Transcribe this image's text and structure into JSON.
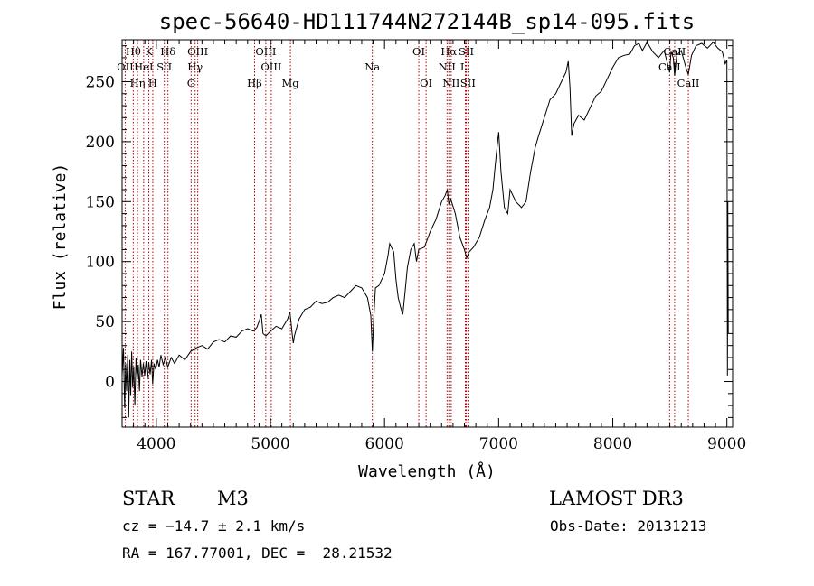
{
  "chart_data": {
    "type": "line",
    "title": "spec-56640-HD111744N272144B_sp14-095.fits",
    "xlabel": "Wavelength (Å)",
    "ylabel": "Flux (relative)",
    "xlim": [
      3700,
      9050
    ],
    "ylim": [
      -38,
      285
    ],
    "xticks": [
      4000,
      5000,
      6000,
      7000,
      8000,
      9000
    ],
    "yticks": [
      0,
      50,
      100,
      150,
      200,
      250
    ],
    "spectrum": [
      [
        3700,
        5
      ],
      [
        3712,
        28
      ],
      [
        3722,
        -22
      ],
      [
        3731,
        15
      ],
      [
        3740,
        -8
      ],
      [
        3749,
        22
      ],
      [
        3758,
        -30
      ],
      [
        3767,
        18
      ],
      [
        3775,
        -12
      ],
      [
        3784,
        25
      ],
      [
        3793,
        -5
      ],
      [
        3802,
        12
      ],
      [
        3812,
        -20
      ],
      [
        3822,
        20
      ],
      [
        3832,
        2
      ],
      [
        3842,
        14
      ],
      [
        3852,
        -8
      ],
      [
        3862,
        18
      ],
      [
        3874,
        4
      ],
      [
        3886,
        15
      ],
      [
        3898,
        5
      ],
      [
        3910,
        17
      ],
      [
        3922,
        2
      ],
      [
        3934,
        16
      ],
      [
        3946,
        6
      ],
      [
        3958,
        18
      ],
      [
        3968,
        -2
      ],
      [
        3980,
        15
      ],
      [
        3995,
        10
      ],
      [
        4010,
        18
      ],
      [
        4025,
        12
      ],
      [
        4040,
        22
      ],
      [
        4060,
        14
      ],
      [
        4080,
        20
      ],
      [
        4100,
        12
      ],
      [
        4130,
        20
      ],
      [
        4160,
        15
      ],
      [
        4200,
        22
      ],
      [
        4250,
        18
      ],
      [
        4300,
        25
      ],
      [
        4350,
        28
      ],
      [
        4400,
        30
      ],
      [
        4450,
        27
      ],
      [
        4500,
        33
      ],
      [
        4550,
        35
      ],
      [
        4600,
        33
      ],
      [
        4650,
        38
      ],
      [
        4700,
        37
      ],
      [
        4750,
        42
      ],
      [
        4800,
        44
      ],
      [
        4850,
        42
      ],
      [
        4880,
        45
      ],
      [
        4900,
        50
      ],
      [
        4920,
        56
      ],
      [
        4935,
        40
      ],
      [
        4960,
        38
      ],
      [
        5000,
        42
      ],
      [
        5050,
        46
      ],
      [
        5100,
        44
      ],
      [
        5150,
        52
      ],
      [
        5170,
        58
      ],
      [
        5180,
        50
      ],
      [
        5190,
        40
      ],
      [
        5200,
        32
      ],
      [
        5210,
        38
      ],
      [
        5250,
        52
      ],
      [
        5300,
        60
      ],
      [
        5350,
        62
      ],
      [
        5400,
        67
      ],
      [
        5450,
        65
      ],
      [
        5500,
        66
      ],
      [
        5550,
        70
      ],
      [
        5600,
        72
      ],
      [
        5650,
        70
      ],
      [
        5700,
        75
      ],
      [
        5750,
        80
      ],
      [
        5800,
        78
      ],
      [
        5850,
        70
      ],
      [
        5880,
        55
      ],
      [
        5893,
        25
      ],
      [
        5905,
        52
      ],
      [
        5920,
        78
      ],
      [
        5950,
        80
      ],
      [
        6000,
        90
      ],
      [
        6030,
        105
      ],
      [
        6045,
        115
      ],
      [
        6060,
        112
      ],
      [
        6080,
        108
      ],
      [
        6100,
        85
      ],
      [
        6120,
        70
      ],
      [
        6140,
        62
      ],
      [
        6160,
        56
      ],
      [
        6180,
        75
      ],
      [
        6200,
        95
      ],
      [
        6230,
        110
      ],
      [
        6260,
        115
      ],
      [
        6280,
        100
      ],
      [
        6300,
        110
      ],
      [
        6350,
        112
      ],
      [
        6400,
        125
      ],
      [
        6450,
        135
      ],
      [
        6500,
        150
      ],
      [
        6530,
        155
      ],
      [
        6550,
        160
      ],
      [
        6563,
        148
      ],
      [
        6580,
        152
      ],
      [
        6620,
        140
      ],
      [
        6660,
        120
      ],
      [
        6700,
        110
      ],
      [
        6720,
        103
      ],
      [
        6740,
        108
      ],
      [
        6780,
        112
      ],
      [
        6830,
        120
      ],
      [
        6880,
        135
      ],
      [
        6920,
        145
      ],
      [
        6950,
        160
      ],
      [
        6980,
        190
      ],
      [
        7000,
        208
      ],
      [
        7020,
        175
      ],
      [
        7050,
        145
      ],
      [
        7080,
        140
      ],
      [
        7100,
        160
      ],
      [
        7150,
        150
      ],
      [
        7200,
        145
      ],
      [
        7240,
        150
      ],
      [
        7280,
        175
      ],
      [
        7320,
        195
      ],
      [
        7350,
        205
      ],
      [
        7400,
        220
      ],
      [
        7450,
        235
      ],
      [
        7500,
        240
      ],
      [
        7550,
        250
      ],
      [
        7590,
        258
      ],
      [
        7610,
        267
      ],
      [
        7625,
        245
      ],
      [
        7640,
        205
      ],
      [
        7660,
        215
      ],
      [
        7700,
        222
      ],
      [
        7750,
        218
      ],
      [
        7800,
        228
      ],
      [
        7850,
        238
      ],
      [
        7900,
        242
      ],
      [
        7950,
        252
      ],
      [
        8000,
        262
      ],
      [
        8050,
        270
      ],
      [
        8100,
        272
      ],
      [
        8150,
        273
      ],
      [
        8190,
        280
      ],
      [
        8230,
        282
      ],
      [
        8260,
        276
      ],
      [
        8300,
        283
      ],
      [
        8350,
        275
      ],
      [
        8400,
        270
      ],
      [
        8450,
        276
      ],
      [
        8498,
        258
      ],
      [
        8510,
        275
      ],
      [
        8530,
        270
      ],
      [
        8542,
        255
      ],
      [
        8560,
        272
      ],
      [
        8600,
        276
      ],
      [
        8640,
        262
      ],
      [
        8662,
        256
      ],
      [
        8690,
        272
      ],
      [
        8730,
        280
      ],
      [
        8780,
        282
      ],
      [
        8830,
        278
      ],
      [
        8880,
        283
      ],
      [
        8920,
        278
      ],
      [
        8960,
        275
      ],
      [
        8985,
        265
      ],
      [
        9000,
        268
      ],
      [
        9005,
        5
      ],
      [
        9008,
        150
      ],
      [
        9012,
        40
      ]
    ],
    "lines": [
      {
        "label": "Hθ",
        "x": 3798,
        "row": 0
      },
      {
        "label": "K",
        "x": 3934,
        "row": 0
      },
      {
        "label": "Hδ",
        "x": 4102,
        "row": 0
      },
      {
        "label": "OIII",
        "x": 4363,
        "row": 0
      },
      {
        "label": "OIII",
        "x": 4959,
        "row": 0
      },
      {
        "label": "OI",
        "x": 6300,
        "row": 0
      },
      {
        "label": "Hα",
        "x": 6563,
        "row": 0
      },
      {
        "label": "SII",
        "x": 6716,
        "row": 0
      },
      {
        "label": "CaII",
        "x": 8542,
        "row": 0
      },
      {
        "label": "OII",
        "x": 3727,
        "row": 1
      },
      {
        "label": "HeI",
        "x": 3889,
        "row": 1
      },
      {
        "label": "SII",
        "x": 4070,
        "row": 1
      },
      {
        "label": "Hγ",
        "x": 4340,
        "row": 1
      },
      {
        "label": "OIII",
        "x": 5007,
        "row": 1
      },
      {
        "label": "Na",
        "x": 5893,
        "row": 1
      },
      {
        "label": "NII",
        "x": 6548,
        "row": 1
      },
      {
        "label": "Li",
        "x": 6708,
        "row": 1
      },
      {
        "label": "CaII",
        "x": 8498,
        "row": 1
      },
      {
        "label": "Hη",
        "x": 3835,
        "row": 2
      },
      {
        "label": "H",
        "x": 3969,
        "row": 2
      },
      {
        "label": "G",
        "x": 4305,
        "row": 2
      },
      {
        "label": "Hβ",
        "x": 4861,
        "row": 2
      },
      {
        "label": "Mg",
        "x": 5175,
        "row": 2
      },
      {
        "label": "OI",
        "x": 6364,
        "row": 2
      },
      {
        "label": "NII",
        "x": 6584,
        "row": 2
      },
      {
        "label": "SII",
        "x": 6731,
        "row": 2
      },
      {
        "label": "CaII",
        "x": 8662,
        "row": 2
      }
    ],
    "line_color": "#b00000"
  },
  "info": {
    "class": "STAR",
    "subclass": "M3",
    "survey": "LAMOST DR3",
    "cz": "cz = −14.7 ± 2.1 km/s",
    "obs_date": "Obs-Date: 20131213",
    "radec": "RA = 167.77001, DEC =  28.21532"
  }
}
